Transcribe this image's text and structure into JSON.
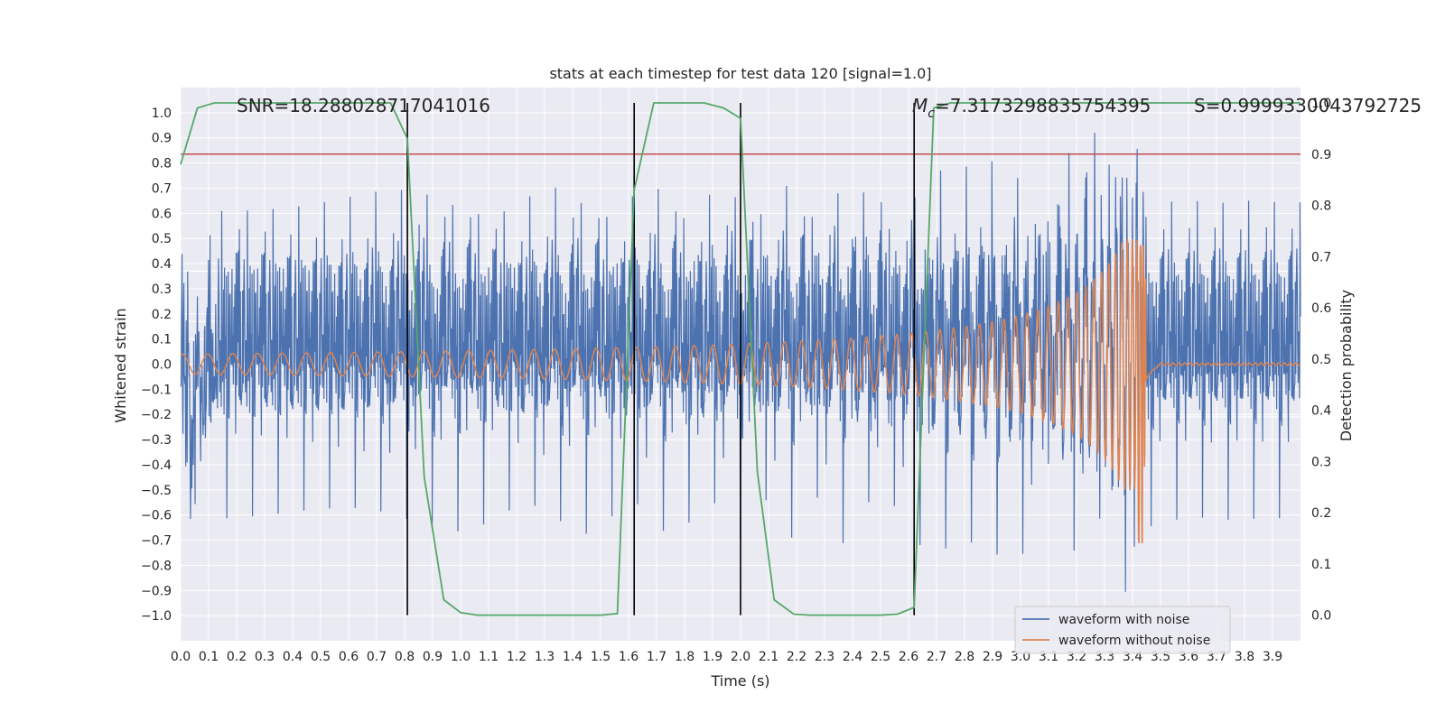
{
  "chart_data": {
    "type": "line",
    "title": "stats at each timestep for test data 120 [signal=1.0]",
    "xlabel": "Time (s)",
    "ylabel": "Whitened strain",
    "ylabel_right": "Detection probability",
    "xlim": [
      0.0,
      4.0
    ],
    "ylim": [
      -1.1,
      1.1
    ],
    "ylim_right": [
      -0.05,
      1.03
    ],
    "grid": true,
    "x_ticks": [
      "0.0",
      "0.1",
      "0.2",
      "0.3",
      "0.4",
      "0.5",
      "0.6",
      "0.7",
      "0.8",
      "0.9",
      "1.0",
      "1.1",
      "1.2",
      "1.3",
      "1.4",
      "1.5",
      "1.6",
      "1.7",
      "1.8",
      "1.9",
      "2.0",
      "2.1",
      "2.2",
      "2.3",
      "2.4",
      "2.5",
      "2.6",
      "2.7",
      "2.8",
      "2.9",
      "3.0",
      "3.1",
      "3.2",
      "3.3",
      "3.4",
      "3.5",
      "3.6",
      "3.7",
      "3.8",
      "3.9"
    ],
    "y_ticks": [
      "1.0",
      "0.9",
      "0.8",
      "0.7",
      "0.6",
      "0.5",
      "0.4",
      "0.3",
      "0.2",
      "0.1",
      "0.0",
      "−0.1",
      "−0.2",
      "−0.3",
      "−0.4",
      "−0.5",
      "−0.6",
      "−0.7",
      "−0.8",
      "−0.9",
      "−1.0"
    ],
    "y_ticks_right": [
      "1.0",
      "0.9",
      "0.8",
      "0.7",
      "0.6",
      "0.5",
      "0.4",
      "0.3",
      "0.2",
      "0.1",
      "0.0"
    ],
    "annotations": {
      "snr": "SNR=18.288028717041016",
      "mc_symbol": "M",
      "mc_sub": "c",
      "mc_value": "=7.3173298835754395",
      "s": "S=0.9999330043792725"
    },
    "legend": [
      "waveform with noise",
      "waveform without noise"
    ],
    "legend_position": "lower-right",
    "threshold_right": 0.9,
    "vertical_markers_x": [
      0.81,
      1.62,
      2.0,
      2.62
    ],
    "white_lines_y": [
      0.37,
      0.17,
      -0.02,
      -0.21
    ],
    "series": [
      {
        "name": "waveform with noise",
        "color": "#4c72b0",
        "axis": "left",
        "kind": "noisy-chirp",
        "noise_amplitude": 0.33,
        "merger_time": 3.43
      },
      {
        "name": "waveform without noise",
        "color": "#dd8452",
        "axis": "left",
        "kind": "chirp",
        "start_amplitude": 0.04,
        "merger_time": 3.43,
        "peak_value": 0.47,
        "trough_value": -0.71
      },
      {
        "name": "detection probability",
        "color": "#55a868",
        "axis": "right",
        "x": [
          0.0,
          0.06,
          0.12,
          0.19,
          0.25,
          0.31,
          0.37,
          0.44,
          0.5,
          0.56,
          0.62,
          0.69,
          0.75,
          0.81,
          0.87,
          0.94,
          1.0,
          1.06,
          1.12,
          1.19,
          1.25,
          1.31,
          1.37,
          1.44,
          1.5,
          1.56,
          1.62,
          1.69,
          1.75,
          1.81,
          1.87,
          1.94,
          2.0,
          2.06,
          2.12,
          2.19,
          2.25,
          2.31,
          2.37,
          2.44,
          2.5,
          2.56,
          2.62,
          2.69,
          2.75,
          2.81,
          2.87,
          2.94,
          3.0,
          3.06,
          3.12,
          3.19,
          3.25,
          3.31,
          3.37,
          3.44,
          3.5,
          3.56,
          3.62,
          3.69,
          3.75,
          3.81,
          3.87,
          3.94,
          4.0
        ],
        "values": [
          0.88,
          0.99,
          1.0,
          1.0,
          1.0,
          1.0,
          1.0,
          1.0,
          1.0,
          1.0,
          1.0,
          1.0,
          1.0,
          0.93,
          0.27,
          0.03,
          0.005,
          0.0,
          0.0,
          0.0,
          0.0,
          0.0,
          0.0,
          0.0,
          0.0,
          0.003,
          0.83,
          1.0,
          1.0,
          1.0,
          1.0,
          0.99,
          0.97,
          0.28,
          0.03,
          0.002,
          0.0,
          0.0,
          0.0,
          0.0,
          0.0,
          0.002,
          0.015,
          0.99,
          1.0,
          1.0,
          1.0,
          1.0,
          1.0,
          1.0,
          1.0,
          1.0,
          1.0,
          1.0,
          1.0,
          1.0,
          1.0,
          1.0,
          1.0,
          1.0,
          1.0,
          1.0,
          1.0,
          1.0,
          1.0
        ]
      }
    ],
    "colors": {
      "background": "#eaeaf2",
      "grid": "#ffffff",
      "threshold": "#c44e52",
      "markers": "#000000"
    }
  }
}
